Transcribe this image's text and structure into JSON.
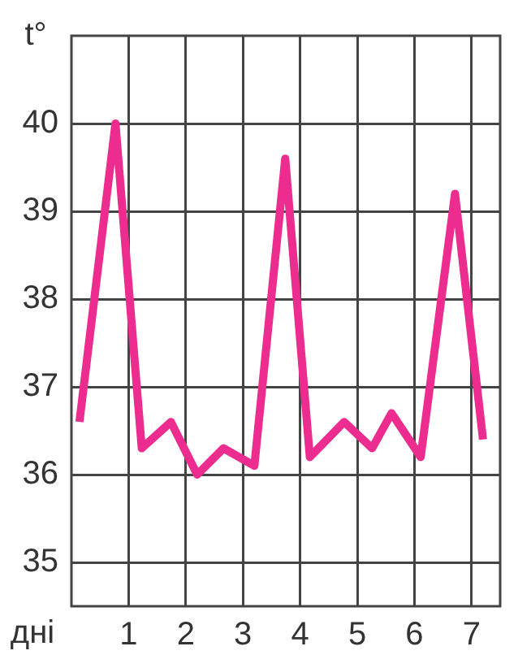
{
  "chart_data": {
    "type": "line",
    "xlabel": "дні",
    "ylabel": "t°",
    "series": [
      {
        "color": "#ec2d8f",
        "x": [
          0.14,
          0.77,
          1.23,
          1.74,
          2.2,
          2.66,
          3.2,
          3.74,
          4.17,
          4.77,
          5.26,
          5.6,
          6.11,
          6.71,
          7.2
        ],
        "values": [
          36.6,
          40.0,
          36.3,
          36.6,
          36.0,
          36.3,
          36.1,
          39.6,
          36.2,
          36.6,
          36.3,
          36.7,
          36.2,
          39.2,
          36.4
        ]
      }
    ],
    "xlim": [
      0,
      7.5
    ],
    "xticks": [
      1,
      2,
      3,
      4,
      5,
      6,
      7
    ],
    "ylim": [
      34.5,
      41
    ],
    "yticks": [
      35,
      36,
      37,
      38,
      39,
      40
    ],
    "grid": true,
    "legend": false,
    "marker": "none",
    "line_style": "solid"
  }
}
